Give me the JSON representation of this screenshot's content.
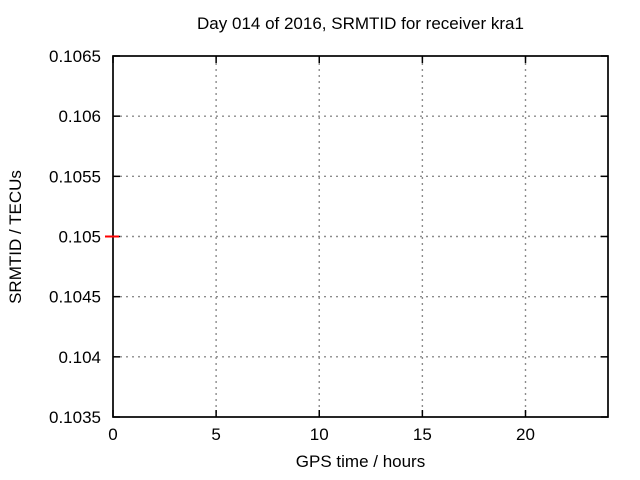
{
  "window": {
    "background": "#ffffff"
  },
  "chart_data": {
    "type": "line",
    "title": "Day 014 of 2016, SRMTID for receiver kra1",
    "xlabel": "GPS time / hours",
    "ylabel": "SRMTID / TECUs",
    "xlim": [
      0,
      24
    ],
    "ylim": [
      0.1035,
      0.1065
    ],
    "xticks": {
      "values": [
        0,
        5,
        10,
        15,
        20
      ],
      "labels": [
        "0",
        "5",
        "10",
        "15",
        "20"
      ]
    },
    "yticks": {
      "values": [
        0.1035,
        0.104,
        0.1045,
        0.105,
        0.1055,
        0.106,
        0.1065
      ],
      "labels": [
        "0.1035",
        "0.104",
        "0.1045",
        "0.105",
        "0.1055",
        "0.106",
        "0.1065"
      ]
    },
    "grid": "dotted",
    "legend": "none",
    "series": [
      {
        "name": "SRMTID",
        "color": "#ff0000",
        "marker": "horizontal-dash",
        "points": [
          {
            "x": 0,
            "y": 0.105
          }
        ]
      }
    ]
  },
  "colors": {
    "background": "#ffffff",
    "axis": "#000000",
    "grid": "#8c8c8c",
    "text": "#000000",
    "series_red": "#ff0000"
  }
}
